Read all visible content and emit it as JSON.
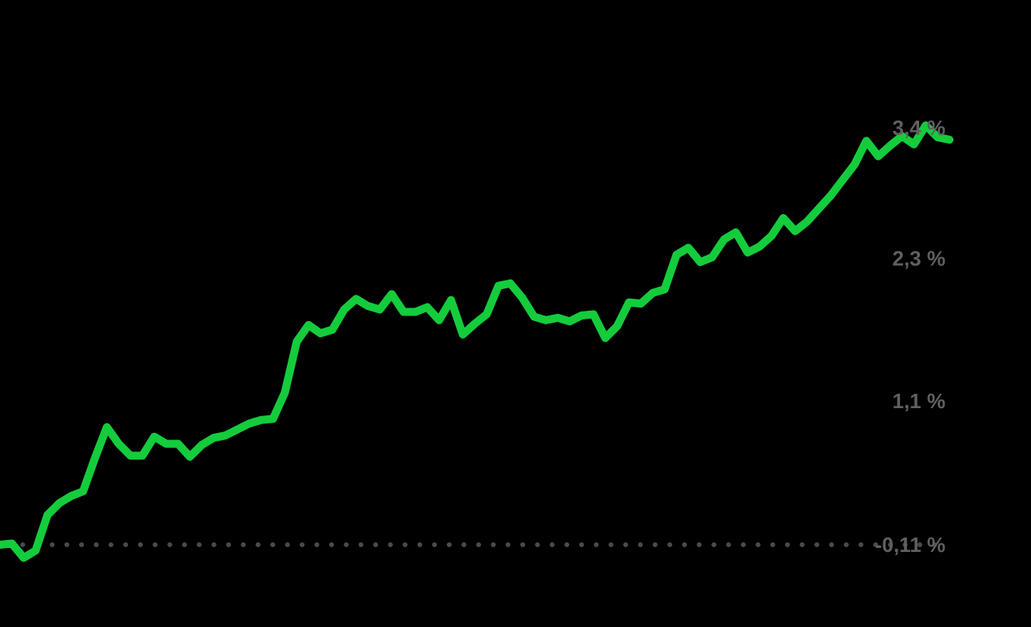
{
  "chart_data": {
    "type": "line",
    "title": "",
    "xlabel": "",
    "ylabel": "",
    "y_ticks": [
      {
        "value": 3.4,
        "label": "3,4 %"
      },
      {
        "value": 2.3,
        "label": "2,3 %"
      },
      {
        "value": 1.1,
        "label": "1,1 %"
      },
      {
        "value": -0.11,
        "label": "-0,11 %"
      }
    ],
    "ylim": [
      -0.11,
      3.4
    ],
    "baseline": {
      "value": -0.11,
      "style": "dotted"
    },
    "grid": false,
    "legend": "none",
    "series": [
      {
        "color": "#14cc3c",
        "values": [
          -0.11,
          -0.1,
          -0.22,
          -0.16,
          0.14,
          0.24,
          0.3,
          0.34,
          0.62,
          0.88,
          0.74,
          0.64,
          0.64,
          0.8,
          0.74,
          0.74,
          0.63,
          0.73,
          0.79,
          0.81,
          0.86,
          0.91,
          0.94,
          0.95,
          1.17,
          1.6,
          1.74,
          1.67,
          1.7,
          1.87,
          1.96,
          1.9,
          1.87,
          2.0,
          1.85,
          1.85,
          1.89,
          1.78,
          1.95,
          1.66,
          1.75,
          1.83,
          2.07,
          2.09,
          1.97,
          1.81,
          1.78,
          1.8,
          1.77,
          1.82,
          1.83,
          1.63,
          1.73,
          1.93,
          1.92,
          2.01,
          2.04,
          2.33,
          2.39,
          2.27,
          2.31,
          2.46,
          2.52,
          2.35,
          2.4,
          2.49,
          2.64,
          2.53,
          2.61,
          2.72,
          2.83,
          2.96,
          3.09,
          3.29,
          3.16,
          3.25,
          3.33,
          3.26,
          3.42,
          3.32,
          3.3
        ]
      }
    ]
  }
}
